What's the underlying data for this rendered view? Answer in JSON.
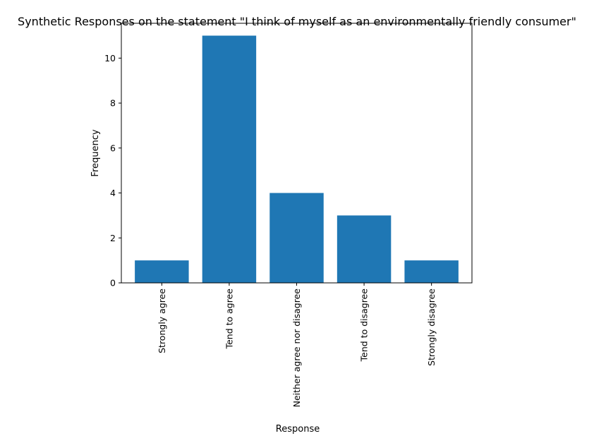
{
  "chart_data": {
    "type": "bar",
    "title": "Synthetic Responses on the statement \"I think of myself as an environmentally friendly consumer\"",
    "xlabel": "Response",
    "ylabel": "Frequency",
    "categories": [
      "Strongly agree",
      "Tend to agree",
      "Neither agree nor disagree",
      "Tend to disagree",
      "Strongly disagree"
    ],
    "values": [
      1,
      11,
      4,
      3,
      1
    ],
    "ylim": [
      0,
      11.55
    ],
    "yticks": [
      0,
      2,
      4,
      6,
      8,
      10
    ],
    "grid": false,
    "bar_color": "#1f77b4"
  }
}
